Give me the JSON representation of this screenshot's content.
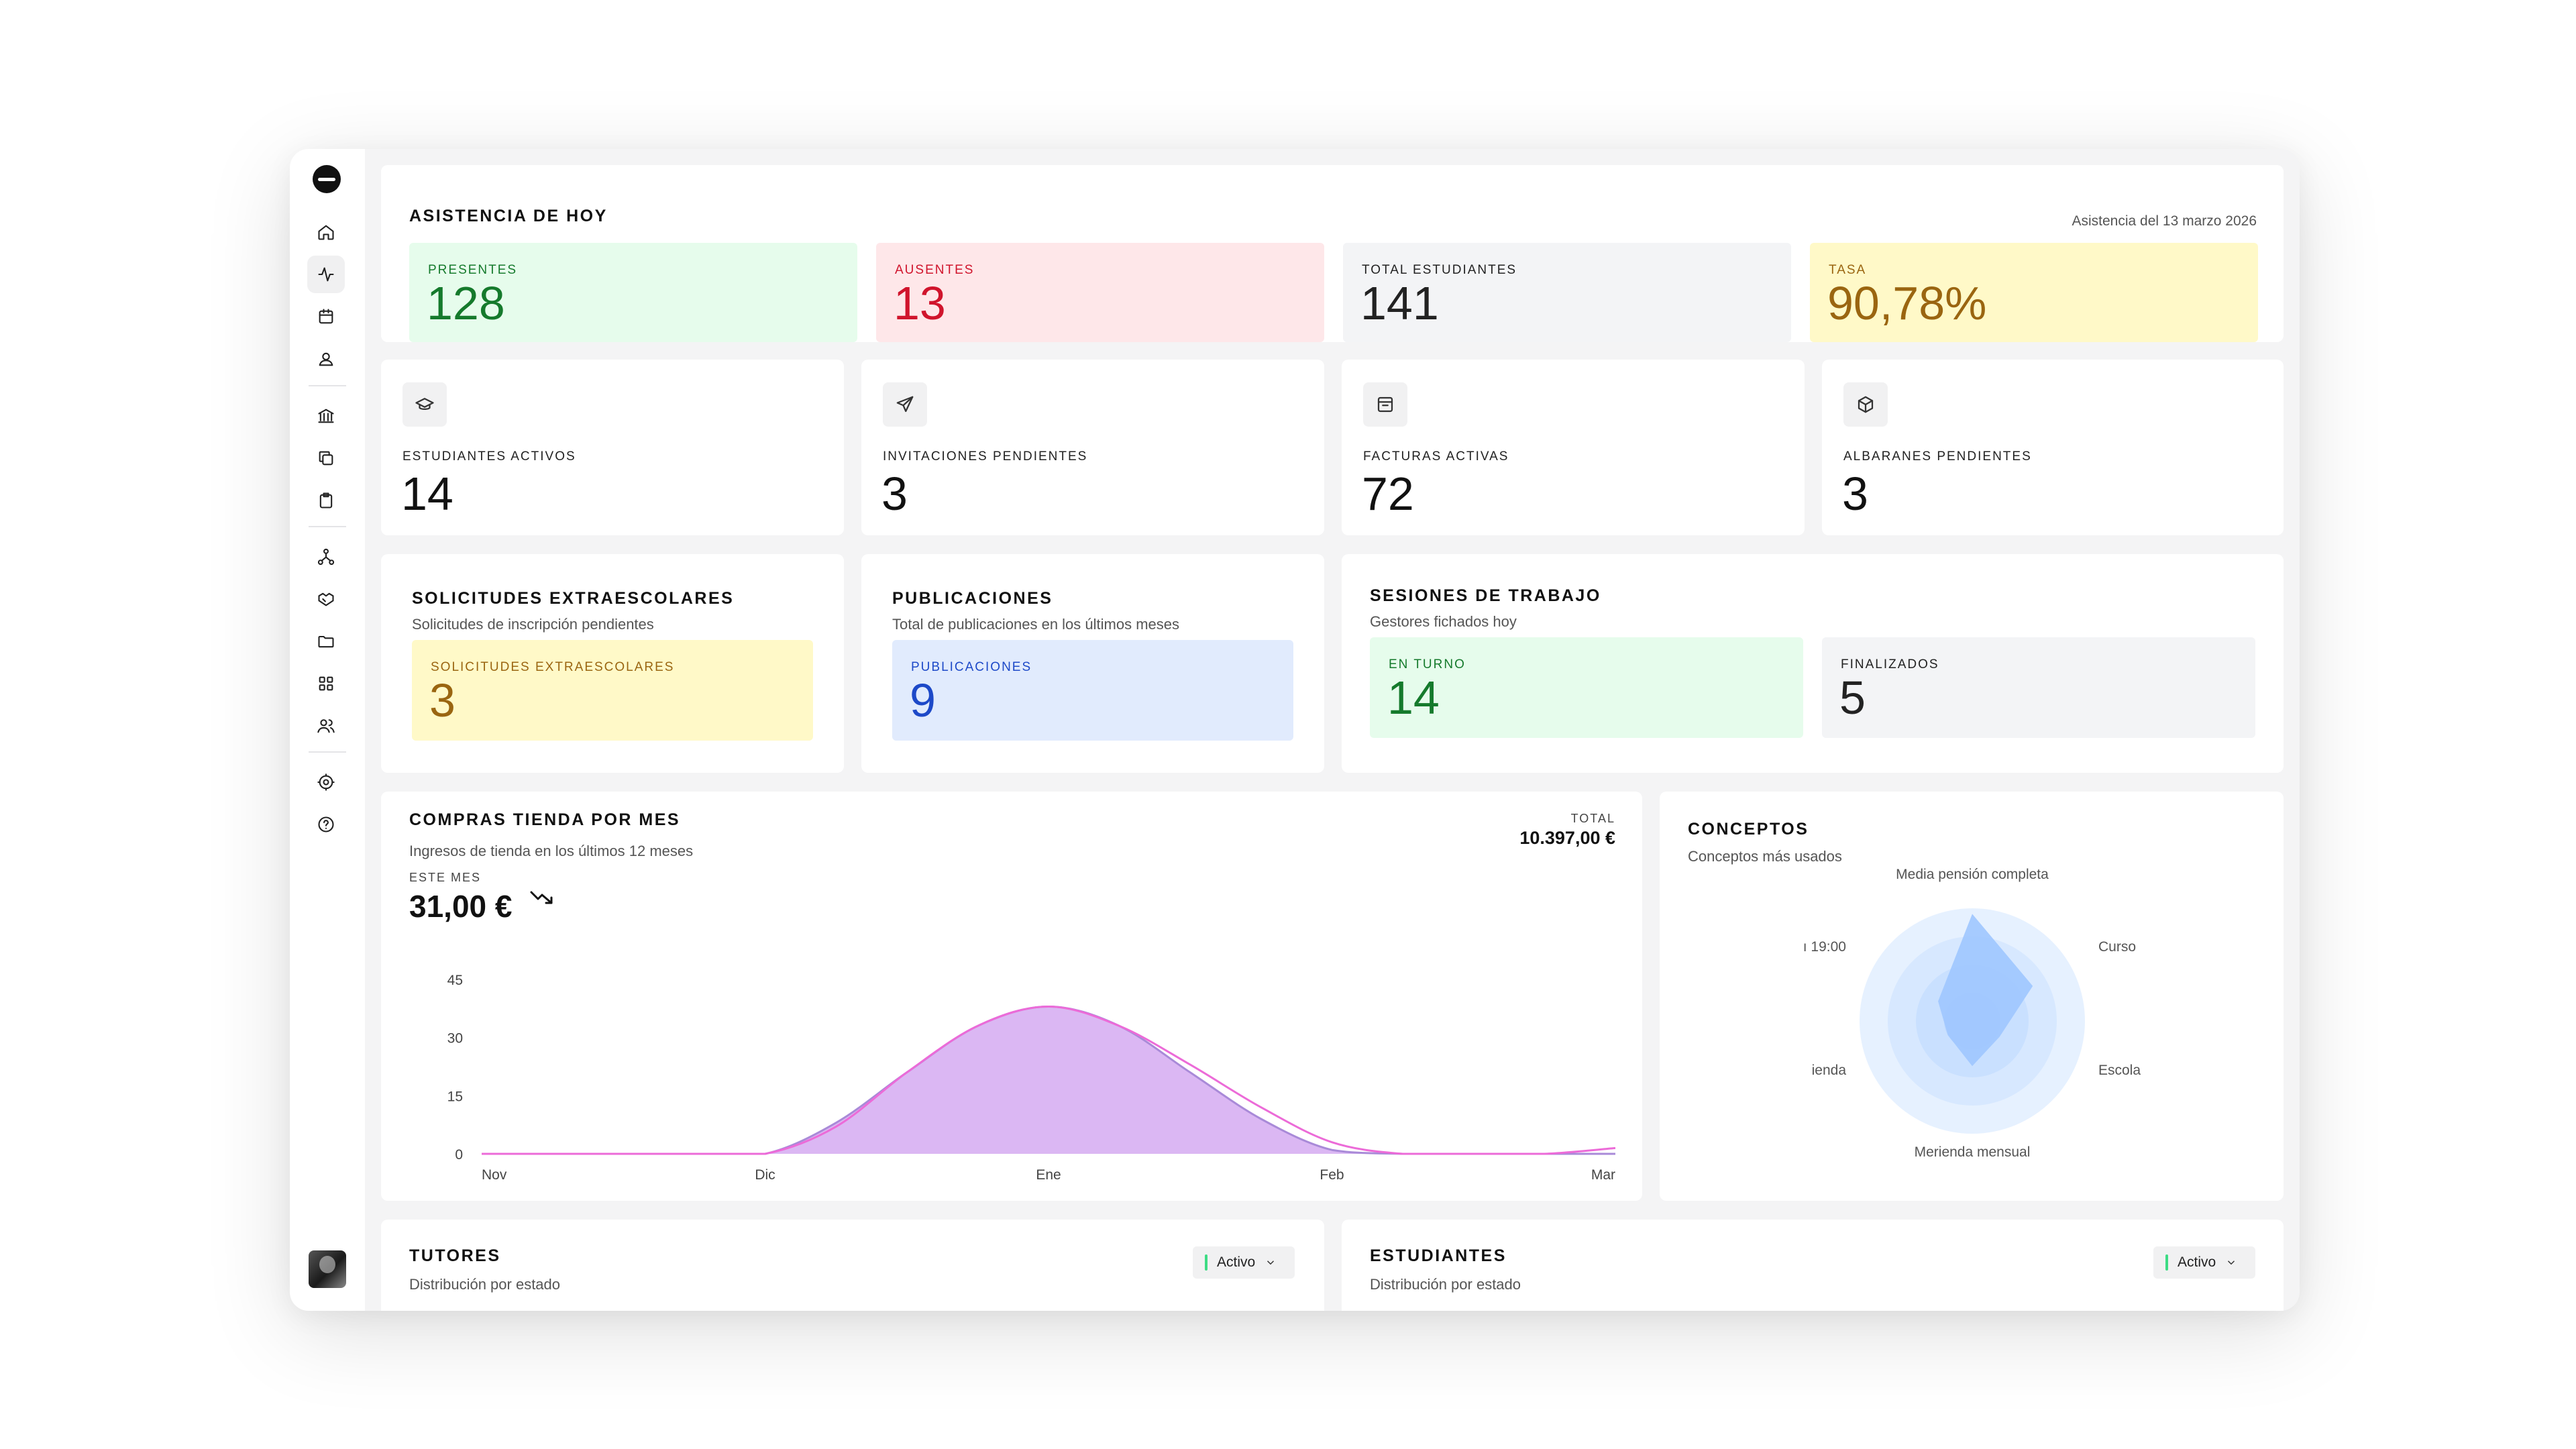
{
  "attendance": {
    "title": "ASISTENCIA DE HOY",
    "date_note": "Asistencia del 13 marzo 2026",
    "tiles": [
      {
        "label": "PRESENTES",
        "value": "128"
      },
      {
        "label": "AUSENTES",
        "value": "13"
      },
      {
        "label": "TOTAL ESTUDIANTES",
        "value": "141"
      },
      {
        "label": "TASA",
        "value": "90,78%"
      }
    ]
  },
  "stats": [
    {
      "icon": "graduation-cap-icon",
      "label": "ESTUDIANTES ACTIVOS",
      "value": "14"
    },
    {
      "icon": "send-icon",
      "label": "INVITACIONES PENDIENTES",
      "value": "3"
    },
    {
      "icon": "invoice-icon",
      "label": "FACTURAS ACTIVAS",
      "value": "72"
    },
    {
      "icon": "box-icon",
      "label": "ALBARANES PENDIENTES",
      "value": "3"
    }
  ],
  "solicitudes": {
    "title": "SOLICITUDES EXTRAESCOLARES",
    "subtitle": "Solicitudes de inscripción pendientes",
    "tile_label": "SOLICITUDES EXTRAESCOLARES",
    "tile_value": "3"
  },
  "publicaciones": {
    "title": "PUBLICACIONES",
    "subtitle": "Total de publicaciones en los últimos meses",
    "tile_label": "PUBLICACIONES",
    "tile_value": "9"
  },
  "sesiones": {
    "title": "SESIONES DE TRABAJO",
    "subtitle": "Gestores fichados hoy",
    "tiles": [
      {
        "label": "EN TURNO",
        "value": "14"
      },
      {
        "label": "FINALIZADOS",
        "value": "5"
      }
    ]
  },
  "compras": {
    "title": "COMPRAS TIENDA POR MES",
    "subtitle": "Ingresos de tienda en los últimos 12 meses",
    "month_label": "ESTE MES",
    "month_value": "31,00 €",
    "total_label": "TOTAL",
    "total_value": "10.397,00 €"
  },
  "conceptos": {
    "title": "CONCEPTOS",
    "subtitle": "Conceptos más usados",
    "labels": [
      "Media pensión completa",
      "Curso",
      "Escola",
      "Merienda mensual",
      "ienda",
      "ı 19:00"
    ]
  },
  "tutores": {
    "title": "TUTORES",
    "subtitle": "Distribución por estado",
    "select_value": "Activo"
  },
  "estudiantes": {
    "title": "ESTUDIANTES",
    "subtitle": "Distribución por estado",
    "select_value": "Activo"
  },
  "chart_data": [
    {
      "type": "area",
      "categories": [
        "Nov",
        "Dic",
        "Ene",
        "Feb",
        "Mar"
      ],
      "x": [
        0,
        0.25,
        0.5,
        0.75,
        1,
        1.25,
        1.5,
        1.75,
        2,
        2.25,
        2.5,
        2.75,
        3,
        3.25,
        3.5,
        3.75,
        4
      ],
      "series": [
        {
          "values": [
            0,
            0,
            0,
            0,
            0,
            8,
            21,
            33,
            38,
            33,
            21,
            9,
            1,
            0,
            0,
            0,
            0
          ]
        },
        {
          "values": [
            0,
            0,
            0,
            0,
            0,
            7,
            21,
            33,
            38,
            33,
            23,
            12,
            3,
            0,
            0,
            0,
            1.5
          ]
        }
      ],
      "yticks": [
        "0",
        "15",
        "30",
        "45"
      ],
      "ylim": [
        0,
        45
      ],
      "colors": {
        "fill": "#d9b3f2",
        "line_a": "#a98ad8",
        "line_b": "#ec6bd8"
      }
    },
    {
      "type": "radar",
      "axes": [
        "Media pensión completa",
        "Curso",
        "Escola",
        "Merienda mensual",
        "ienda",
        "ı 19:00"
      ],
      "values": [
        0.95,
        0.62,
        0.28,
        0.4,
        0.25,
        0.35
      ],
      "max": 1,
      "colors": {
        "fill": "#9ec7ff",
        "ring": "#dfeeff"
      }
    }
  ]
}
